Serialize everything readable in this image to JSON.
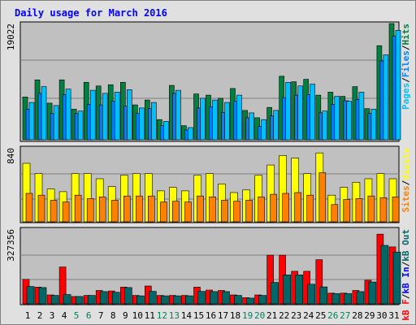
{
  "chart_data": {
    "title": "Daily usage for March 2016",
    "days": [
      "1",
      "2",
      "3",
      "4",
      "5",
      "6",
      "7",
      "8",
      "9",
      "10",
      "11",
      "12",
      "13",
      "14",
      "15",
      "16",
      "17",
      "18",
      "19",
      "20",
      "21",
      "22",
      "23",
      "24",
      "25",
      "26",
      "27",
      "28",
      "29",
      "30",
      "31"
    ],
    "weekend_days": [
      "5",
      "6",
      "12",
      "13",
      "19",
      "20",
      "26",
      "27"
    ],
    "colors": {
      "hits": "#008040",
      "files": "#0080ff",
      "pages": "#00c0ff",
      "visits": "#ffff00",
      "sites": "#ff8000",
      "kb_in": "#006666",
      "kb_out": "#ff0000",
      "title": "#0000ff",
      "weekend_label": "#00805c",
      "plot_bg": "#c0c0c0"
    },
    "panels": [
      {
        "id": "hits-files-pages",
        "type": "bar",
        "max_label": "19022",
        "ymax": 19022,
        "legend": [
          {
            "text": "Pages",
            "color": "#00c0ff"
          },
          {
            "text": "/",
            "color": "#000000"
          },
          {
            "text": "Files",
            "color": "#0080ff"
          },
          {
            "text": "/",
            "color": "#000000"
          },
          {
            "text": "Hits",
            "color": "#008040"
          }
        ],
        "series": [
          {
            "name": "Hits",
            "color": "#008040",
            "values": [
              7000,
              9800,
              6000,
              9800,
              5000,
              9400,
              8800,
              9000,
              9400,
              5700,
              6500,
              3300,
              8900,
              2300,
              7500,
              7300,
              6800,
              8400,
              4800,
              3600,
              5300,
              10400,
              9500,
              9900,
              7300,
              7800,
              7100,
              8700,
              5100,
              15400,
              19022
            ]
          },
          {
            "name": "Files",
            "color": "#0080ff",
            "values": [
              5000,
              7600,
              4300,
              7400,
              4300,
              5800,
              5700,
              6300,
              5500,
              4300,
              5100,
              2300,
              7600,
              1600,
              5200,
              5400,
              4500,
              6300,
              3600,
              2200,
              3900,
              6900,
              7300,
              7400,
              4400,
              5800,
              6400,
              6600,
              4300,
              12900,
              17000
            ]
          },
          {
            "name": "Pages",
            "color": "#00c0ff",
            "values": [
              6100,
              8700,
              5600,
              8300,
              4700,
              8100,
              7600,
              7800,
              8200,
              5200,
              6100,
              3000,
              8100,
              2000,
              6800,
              6500,
              6100,
              7300,
              4400,
              3300,
              4800,
              9400,
              8800,
              9100,
              4700,
              7100,
              6300,
              7800,
              5000,
              13900,
              17900
            ]
          }
        ]
      },
      {
        "id": "visits-sites",
        "type": "bar",
        "max_label": "840",
        "ymax": 840,
        "legend": [
          {
            "text": "Sites",
            "color": "#ff8000"
          },
          {
            "text": "/",
            "color": "#000000"
          },
          {
            "text": "Visits",
            "color": "#ffff00"
          }
        ],
        "series": [
          {
            "name": "Visits",
            "color": "#ffff00",
            "values": [
              680,
              560,
              380,
              350,
              560,
              560,
              500,
              410,
              540,
              560,
              560,
              360,
              400,
              360,
              540,
              560,
              440,
              340,
              370,
              540,
              660,
              770,
              740,
              560,
              800,
              310,
              400,
              460,
              500,
              560,
              500
            ]
          },
          {
            "name": "Sites",
            "color": "#ff8000",
            "values": [
              330,
              310,
              250,
              230,
              310,
              270,
              290,
              250,
              300,
              300,
              300,
              230,
              240,
              230,
              300,
              290,
              250,
              240,
              250,
              290,
              320,
              330,
              340,
              310,
              570,
              200,
              260,
              270,
              300,
              280,
              290
            ]
          }
        ]
      },
      {
        "id": "kbin-kbout",
        "type": "bar",
        "max_label": "327356",
        "ymax": 327356,
        "legend": [
          {
            "text": "kB F",
            "color": "#ff0000"
          },
          {
            "text": "/",
            "color": "#000000"
          },
          {
            "text": "kB In",
            "color": "#0000ff"
          },
          {
            "text": "/",
            "color": "#000000"
          },
          {
            "text": "kB Out",
            "color": "#006666"
          }
        ],
        "series": [
          {
            "name": "kB Out",
            "color": "#ff0000",
            "values": [
              110000,
              75000,
              40000,
              165000,
              33000,
              38000,
              60000,
              58000,
              75000,
              38000,
              80000,
              38000,
              38000,
              38000,
              75000,
              62000,
              60000,
              40000,
              28000,
              40000,
              218000,
              218000,
              146000,
              146000,
              198000,
              48000,
              48000,
              60000,
              106000,
              312000,
              255000
            ]
          },
          {
            "name": "kB In",
            "color": "#006666",
            "values": [
              78000,
              73000,
              38000,
              42000,
              33000,
              38000,
              55000,
              52000,
              73000,
              36000,
              56000,
              36000,
              36000,
              36000,
              56000,
              55000,
              55000,
              38000,
              26000,
              38000,
              96000,
              130000,
              130000,
              88000,
              76000,
              46000,
              46000,
              55000,
              98000,
              262000,
              232000
            ]
          }
        ]
      }
    ]
  }
}
